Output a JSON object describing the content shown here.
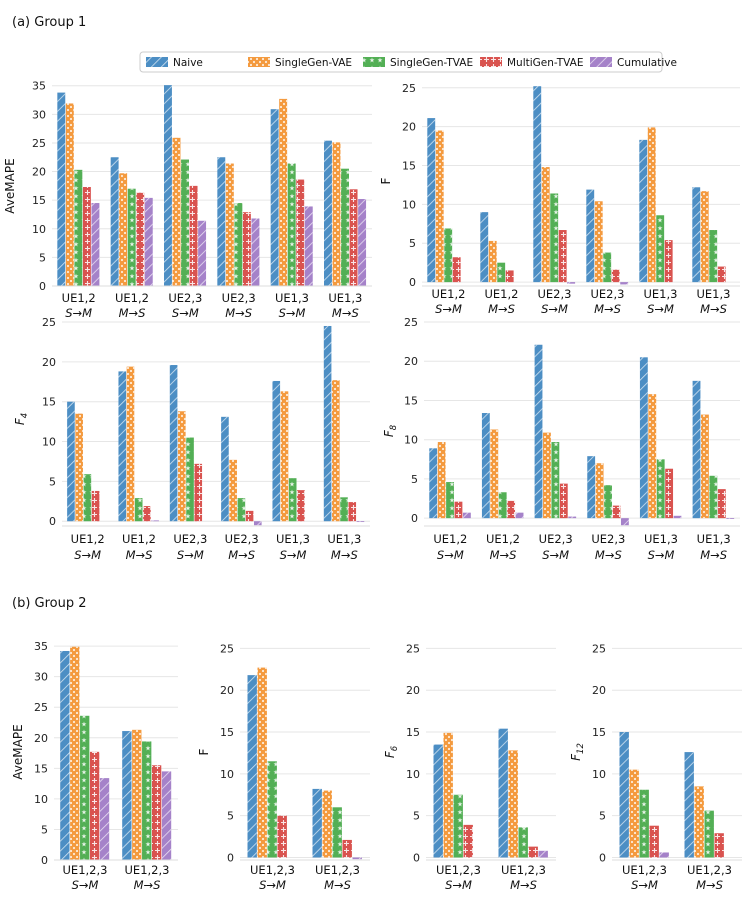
{
  "group_labels": [
    "(a) Group 1",
    "(b) Group 2"
  ],
  "legend": [
    {
      "name": "Naive",
      "color": "#4C8EC4",
      "pattern": "diag"
    },
    {
      "name": "SingleGen-VAE",
      "color": "#F49A3E",
      "pattern": "dots"
    },
    {
      "name": "SingleGen-TVAE",
      "color": "#53AF55",
      "pattern": "star"
    },
    {
      "name": "MultiGen-TVAE",
      "color": "#D9534F",
      "pattern": "plus"
    },
    {
      "name": "Cumulative",
      "color": "#A582C9",
      "pattern": "diag"
    }
  ],
  "chart_data": [
    {
      "type": "bar",
      "panel": "a1",
      "ylabel": "AveMAPE",
      "ylim": [
        0,
        36
      ],
      "yticks": [
        0,
        5,
        10,
        15,
        20,
        25,
        30,
        35
      ],
      "categories": [
        [
          "UE1,2",
          "S→M"
        ],
        [
          "UE1,2",
          "M→S"
        ],
        [
          "UE2,3",
          "S→M"
        ],
        [
          "UE2,3",
          "M→S"
        ],
        [
          "UE1,3",
          "S→M"
        ],
        [
          "UE1,3",
          "M→S"
        ]
      ],
      "series": [
        {
          "name": "Naive",
          "values": [
            33.8,
            22.5,
            35.1,
            22.5,
            30.9,
            25.4
          ]
        },
        {
          "name": "SingleGen-VAE",
          "values": [
            31.9,
            19.7,
            25.9,
            21.4,
            32.7,
            25.1
          ]
        },
        {
          "name": "SingleGen-TVAE",
          "values": [
            20.3,
            17.0,
            22.1,
            14.5,
            21.4,
            20.5
          ]
        },
        {
          "name": "MultiGen-TVAE",
          "values": [
            17.3,
            16.3,
            17.5,
            12.9,
            18.6,
            16.9
          ]
        },
        {
          "name": "Cumulative",
          "values": [
            14.5,
            15.4,
            11.4,
            11.8,
            13.9,
            15.2
          ]
        }
      ]
    },
    {
      "type": "bar",
      "panel": "a2",
      "ylabel": "F",
      "ylim": [
        -0.5,
        26
      ],
      "yticks": [
        0,
        5,
        10,
        15,
        20,
        25
      ],
      "categories": [
        [
          "UE1,2",
          "S→M"
        ],
        [
          "UE1,2",
          "M→S"
        ],
        [
          "UE2,3",
          "S→M"
        ],
        [
          "UE2,3",
          "M→S"
        ],
        [
          "UE1,3",
          "S→M"
        ],
        [
          "UE1,3",
          "M→S"
        ]
      ],
      "series": [
        {
          "name": "Naive",
          "values": [
            21.1,
            9.0,
            25.2,
            11.9,
            18.3,
            12.2
          ]
        },
        {
          "name": "SingleGen-VAE",
          "values": [
            19.5,
            5.3,
            14.8,
            10.4,
            19.9,
            11.7
          ]
        },
        {
          "name": "SingleGen-TVAE",
          "values": [
            6.9,
            2.5,
            11.4,
            3.8,
            8.6,
            6.7
          ]
        },
        {
          "name": "MultiGen-TVAE",
          "values": [
            3.2,
            1.5,
            6.7,
            1.6,
            5.4,
            2.0
          ]
        },
        {
          "name": "Cumulative",
          "values": [
            0.0,
            0.0,
            -0.2,
            -0.3,
            0.0,
            0.0
          ]
        }
      ]
    },
    {
      "type": "bar",
      "panel": "a3",
      "ylabel": "F4",
      "ylim": [
        -0.6,
        25
      ],
      "yticks": [
        0,
        5,
        10,
        15,
        20,
        25
      ],
      "categories": [
        [
          "UE1,2",
          "S→M"
        ],
        [
          "UE1,2",
          "M→S"
        ],
        [
          "UE2,3",
          "S→M"
        ],
        [
          "UE2,3",
          "M→S"
        ],
        [
          "UE1,3",
          "S→M"
        ],
        [
          "UE1,3",
          "M→S"
        ]
      ],
      "series": [
        {
          "name": "Naive",
          "values": [
            15.0,
            18.8,
            19.6,
            13.1,
            17.6,
            24.5
          ]
        },
        {
          "name": "SingleGen-VAE",
          "values": [
            13.5,
            19.4,
            13.8,
            7.7,
            16.3,
            17.7
          ]
        },
        {
          "name": "SingleGen-TVAE",
          "values": [
            5.9,
            2.9,
            10.5,
            2.9,
            5.4,
            3.0
          ]
        },
        {
          "name": "MultiGen-TVAE",
          "values": [
            3.8,
            1.9,
            7.2,
            1.3,
            3.9,
            2.4
          ]
        },
        {
          "name": "Cumulative",
          "values": [
            0.0,
            0.1,
            0.0,
            -0.5,
            0.0,
            -0.1
          ]
        }
      ]
    },
    {
      "type": "bar",
      "panel": "a4",
      "ylabel": "F8",
      "ylim": [
        -1.0,
        25
      ],
      "yticks": [
        0,
        5,
        10,
        15,
        20,
        25
      ],
      "categories": [
        [
          "UE1,2",
          "S→M"
        ],
        [
          "UE1,2",
          "M→S"
        ],
        [
          "UE2,3",
          "S→M"
        ],
        [
          "UE2,3",
          "M→S"
        ],
        [
          "UE1,3",
          "S→M"
        ],
        [
          "UE1,3",
          "M→S"
        ]
      ],
      "series": [
        {
          "name": "Naive",
          "values": [
            8.9,
            13.4,
            22.1,
            7.9,
            20.5,
            17.5
          ]
        },
        {
          "name": "SingleGen-VAE",
          "values": [
            9.7,
            11.3,
            10.9,
            7.0,
            15.8,
            13.2
          ]
        },
        {
          "name": "SingleGen-TVAE",
          "values": [
            4.6,
            3.3,
            9.7,
            4.2,
            7.5,
            5.4
          ]
        },
        {
          "name": "MultiGen-TVAE",
          "values": [
            2.1,
            2.2,
            4.4,
            1.6,
            6.3,
            3.7
          ]
        },
        {
          "name": "Cumulative",
          "values": [
            0.7,
            0.7,
            0.2,
            -0.9,
            0.3,
            -0.1
          ]
        }
      ]
    },
    {
      "type": "bar",
      "panel": "b1",
      "ylabel": "AveMAPE",
      "ylim": [
        0,
        36
      ],
      "yticks": [
        0,
        5,
        10,
        15,
        20,
        25,
        30,
        35
      ],
      "categories": [
        [
          "UE1,2,3",
          "S→M"
        ],
        [
          "UE1,2,3",
          "M→S"
        ]
      ],
      "series": [
        {
          "name": "Naive",
          "values": [
            34.2,
            21.1
          ]
        },
        {
          "name": "SingleGen-VAE",
          "values": [
            34.9,
            21.3
          ]
        },
        {
          "name": "SingleGen-TVAE",
          "values": [
            23.6,
            19.4
          ]
        },
        {
          "name": "MultiGen-TVAE",
          "values": [
            17.7,
            15.5
          ]
        },
        {
          "name": "Cumulative",
          "values": [
            13.4,
            14.5
          ]
        }
      ]
    },
    {
      "type": "bar",
      "panel": "b2",
      "ylabel": "F",
      "ylim": [
        -0.3,
        26
      ],
      "yticks": [
        0,
        5,
        10,
        15,
        20,
        25
      ],
      "categories": [
        [
          "UE1,2,3",
          "S→M"
        ],
        [
          "UE1,2,3",
          "M→S"
        ]
      ],
      "series": [
        {
          "name": "Naive",
          "values": [
            21.8,
            8.2
          ]
        },
        {
          "name": "SingleGen-VAE",
          "values": [
            22.7,
            8.0
          ]
        },
        {
          "name": "SingleGen-TVAE",
          "values": [
            11.5,
            6.0
          ]
        },
        {
          "name": "MultiGen-TVAE",
          "values": [
            5.0,
            2.1
          ]
        },
        {
          "name": "Cumulative",
          "values": [
            0.0,
            -0.2
          ]
        }
      ]
    },
    {
      "type": "bar",
      "panel": "b3",
      "ylabel": "F6",
      "ylim": [
        -0.3,
        26
      ],
      "yticks": [
        0,
        5,
        10,
        15,
        20,
        25
      ],
      "categories": [
        [
          "UE1,2,3",
          "S→M"
        ],
        [
          "UE1,2,3",
          "M→S"
        ]
      ],
      "series": [
        {
          "name": "Naive",
          "values": [
            13.5,
            15.4
          ]
        },
        {
          "name": "SingleGen-VAE",
          "values": [
            14.9,
            12.8
          ]
        },
        {
          "name": "SingleGen-TVAE",
          "values": [
            7.5,
            3.6
          ]
        },
        {
          "name": "MultiGen-TVAE",
          "values": [
            3.9,
            1.3
          ]
        },
        {
          "name": "Cumulative",
          "values": [
            0.0,
            0.8
          ]
        }
      ]
    },
    {
      "type": "bar",
      "panel": "b4",
      "ylabel": "F12",
      "ylim": [
        -0.3,
        26
      ],
      "yticks": [
        0,
        5,
        10,
        15,
        20,
        25
      ],
      "categories": [
        [
          "UE1,2,3",
          "S→M"
        ],
        [
          "UE1,2,3",
          "M→S"
        ]
      ],
      "series": [
        {
          "name": "Naive",
          "values": [
            15.0,
            12.6
          ]
        },
        {
          "name": "SingleGen-VAE",
          "values": [
            10.5,
            8.5
          ]
        },
        {
          "name": "SingleGen-TVAE",
          "values": [
            8.1,
            5.6
          ]
        },
        {
          "name": "MultiGen-TVAE",
          "values": [
            3.8,
            2.9
          ]
        },
        {
          "name": "Cumulative",
          "values": [
            0.6,
            0.0
          ]
        }
      ]
    }
  ]
}
